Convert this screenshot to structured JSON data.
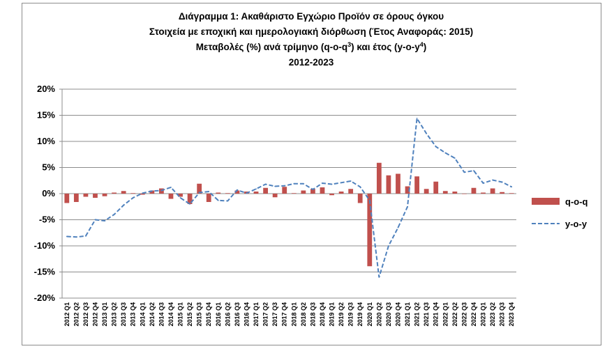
{
  "chart_data": {
    "type": "bar",
    "title": {
      "line1": "Διάγραμμα 1: Ακαθάριστο Εγχώριο Προϊόν σε όρους όγκου",
      "line2": "Στοιχεία με εποχική και ημερολογιακή διόρθωση (Έτος Αναφοράς: 2015)",
      "line3_prefix": "Μεταβολές (%) ανά τρίμηνο (q-o-q",
      "line3_sup1": "3",
      "line3_middle": ") και έτος (y-o-y",
      "line3_sup2": "4",
      "line3_suffix": ")",
      "line4": "2012-2023"
    },
    "ylim": [
      -20,
      20
    ],
    "yticks": [
      {
        "v": 20,
        "label": "20%"
      },
      {
        "v": 15,
        "label": "15%"
      },
      {
        "v": 10,
        "label": "10%"
      },
      {
        "v": 5,
        "label": "5%"
      },
      {
        "v": 0,
        "label": "0%"
      },
      {
        "v": -5,
        "label": "-5%"
      },
      {
        "v": -10,
        "label": "-10%"
      },
      {
        "v": -15,
        "label": "-15%"
      },
      {
        "v": -20,
        "label": "-20%"
      }
    ],
    "grid": true,
    "legend_position": "right",
    "categories": [
      "2012 Q1",
      "2012 Q2",
      "2012 Q3",
      "2012 Q4",
      "2013 Q1",
      "2013 Q2",
      "2013 Q3",
      "2013 Q4",
      "2014 Q1",
      "2014 Q2",
      "2014 Q3",
      "2014 Q4",
      "2015 Q1",
      "2015 Q2",
      "2015 Q3",
      "2015 Q4",
      "2016 Q1",
      "2016 Q2",
      "2016 Q3",
      "2016 Q4",
      "2017 Q1",
      "2017 Q2",
      "2017 Q3",
      "2017 Q4",
      "2018 Q1",
      "2018 Q2",
      "2018 Q3",
      "2018 Q4",
      "2019 Q1",
      "2019 Q2",
      "2019 Q3",
      "2019 Q4",
      "2020 Q1",
      "2020 Q2",
      "2020 Q3",
      "2020 Q4",
      "2021 Q1",
      "2021 Q2",
      "2021 Q3",
      "2021 Q4",
      "2022 Q1",
      "2022 Q2",
      "2022 Q3",
      "2022 Q4",
      "2023 Q1",
      "2023 Q2",
      "2023 Q3",
      "2023 Q4"
    ],
    "series": [
      {
        "name": "q-o-q",
        "kind": "bar",
        "color": "#c0504d",
        "values": [
          -1.8,
          -1.6,
          -0.6,
          -0.8,
          -0.5,
          0.2,
          0.5,
          0.1,
          -0.2,
          0.6,
          1.0,
          -1.0,
          -0.6,
          -2.0,
          1.9,
          -1.6,
          0.2,
          0.1,
          0.6,
          0.4,
          0.4,
          1.1,
          -0.7,
          1.3,
          0.1,
          0.6,
          0.9,
          1.2,
          -0.3,
          0.4,
          0.9,
          -1.8,
          -13.9,
          5.9,
          3.5,
          3.8,
          1.4,
          3.3,
          0.9,
          2.3,
          0.5,
          0.4,
          0.0,
          1.1,
          0.2,
          1.0,
          0.3,
          0.1
        ]
      },
      {
        "name": "y-o-y",
        "kind": "line",
        "color": "#4f81bd",
        "values": [
          -8.2,
          -8.3,
          -8.1,
          -5.0,
          -5.2,
          -4.0,
          -2.2,
          -0.8,
          0.1,
          0.5,
          0.6,
          1.2,
          -0.8,
          -2.0,
          0.2,
          0.4,
          -1.3,
          -1.4,
          0.7,
          0.1,
          0.9,
          1.8,
          1.4,
          1.5,
          1.9,
          1.9,
          0.8,
          2.0,
          1.8,
          2.1,
          2.4,
          1.3,
          -1.3,
          -16.0,
          -10.0,
          -6.5,
          -2.5,
          14.4,
          11.5,
          9.0,
          7.8,
          6.8,
          4.1,
          4.4,
          2.0,
          2.6,
          2.2,
          1.3
        ]
      }
    ]
  }
}
